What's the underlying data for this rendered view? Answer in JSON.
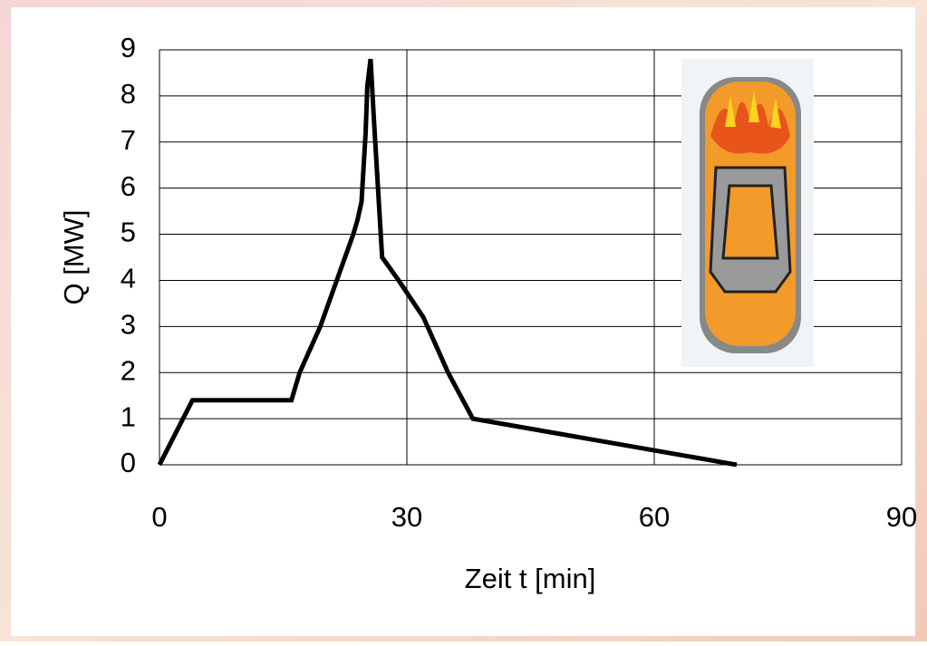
{
  "chart_data": {
    "type": "line",
    "x_label": "Zeit t [min]",
    "y_label": "Q [MW]",
    "x": [
      0,
      4,
      16,
      17,
      19.5,
      21.5,
      23.5,
      24,
      24.5,
      25,
      25.2,
      25.6,
      26,
      26.5,
      27,
      29,
      32,
      35,
      38,
      70
    ],
    "series": [
      {
        "color": "#000000",
        "values": [
          0,
          1.4,
          1.4,
          2,
          3,
          4,
          5,
          5.3,
          5.7,
          7.2,
          8.2,
          8.8,
          7.5,
          6,
          4.5,
          4,
          3.2,
          2,
          1,
          0
        ]
      }
    ],
    "xlim": [
      0,
      90
    ],
    "xticks": [
      0,
      30,
      60,
      90
    ],
    "ylim": [
      0,
      9
    ],
    "yticks": [
      0,
      1,
      2,
      3,
      4,
      5,
      6,
      7,
      8,
      9
    ],
    "grid": true
  }
}
